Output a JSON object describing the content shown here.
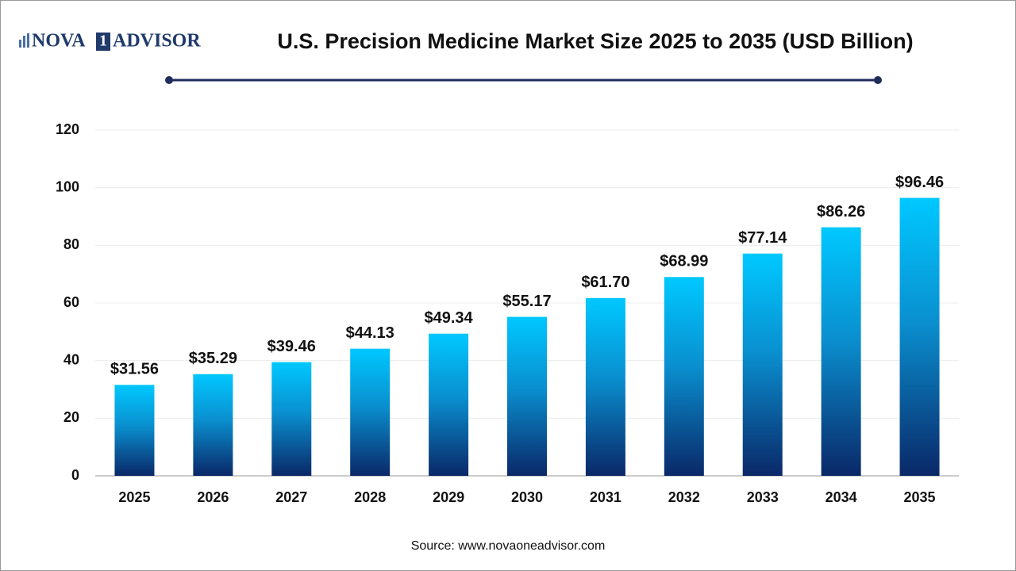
{
  "logo": {
    "left": "NOVA",
    "mark": "1",
    "right": "ADVISOR"
  },
  "chart_data": {
    "type": "bar",
    "title": "U.S. Precision Medicine Market Size 2025 to 2035 (USD Billion)",
    "categories": [
      "2025",
      "2026",
      "2027",
      "2028",
      "2029",
      "2030",
      "2031",
      "2032",
      "2033",
      "2034",
      "2035"
    ],
    "values": [
      31.56,
      35.29,
      39.46,
      44.13,
      49.34,
      55.17,
      61.7,
      68.99,
      77.14,
      86.26,
      96.46
    ],
    "value_labels": [
      "$31.56",
      "$35.29",
      "$39.46",
      "$44.13",
      "$49.34",
      "$55.17",
      "$61.70",
      "$68.99",
      "$77.14",
      "$86.26",
      "$96.46"
    ],
    "color": "#00c6ff",
    "ylim": [
      0,
      120
    ],
    "yticks": [
      0,
      20,
      40,
      60,
      80,
      100,
      120
    ],
    "grid": true,
    "source": "Source: www.novaoneadvisor.com"
  }
}
